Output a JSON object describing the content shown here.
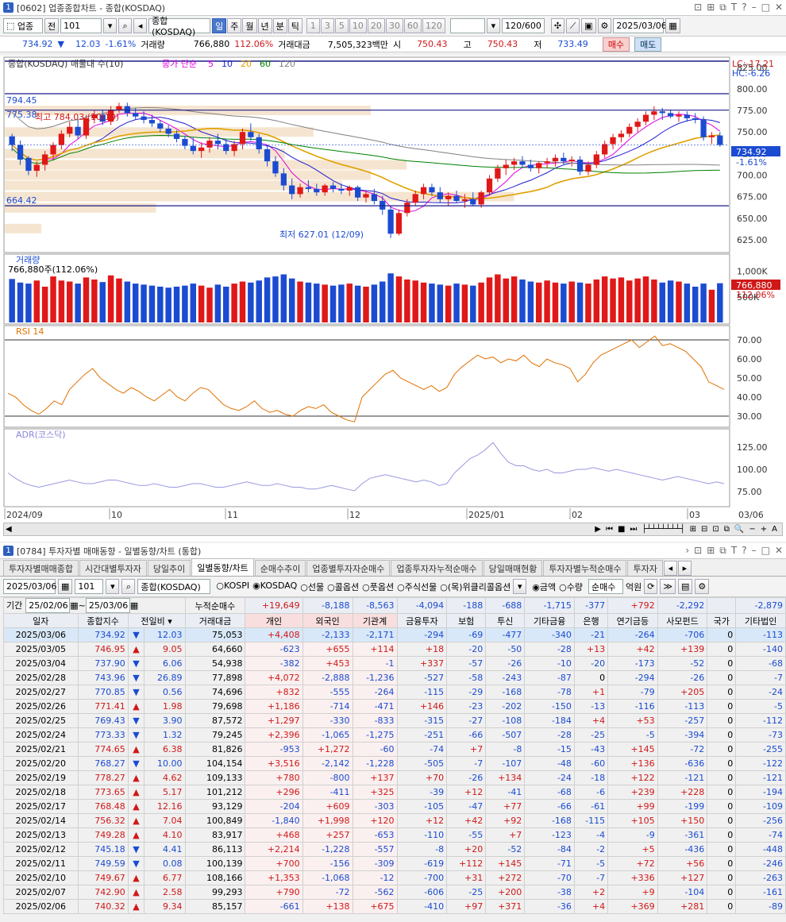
{
  "chart_win": {
    "badge": "1",
    "title": "[0602] 업종종합차트 - 종합(KOSDAQ)"
  },
  "toolbar": {
    "sector": "업종",
    "prev": "전",
    "code": "101",
    "name": "종합(KOSDAQ)",
    "periods": [
      "일",
      "주",
      "월",
      "년",
      "분",
      "틱"
    ],
    "nums": [
      "1",
      "3",
      "5",
      "10",
      "20",
      "30",
      "60",
      "120"
    ],
    "count": "120/600",
    "date": "2025/03/06"
  },
  "quote": {
    "price": "734.92",
    "arrow": "▼",
    "change": "12.03",
    "pct": "-1.61%",
    "vol_label": "거래량",
    "vol": "766,880",
    "vol_pct": "112.06%",
    "amt_label": "거래대금",
    "amt": "7,505,323백만",
    "open_l": "시",
    "open": "750.43",
    "high_l": "고",
    "high": "750.43",
    "low_l": "저",
    "low": "733.49",
    "buy": "매수",
    "sell": "매도"
  },
  "price_chart": {
    "legend": "종합(KOSDAQ) 매물대 수(10)",
    "ma_title": "종가 단순",
    "mas": [
      "5",
      "10",
      "20",
      "60",
      "120"
    ],
    "ma_colors": [
      "#e000e0",
      "#1e1ed0",
      "#e0a000",
      "#008000",
      "#808080"
    ],
    "lc": "LC:-17.21",
    "hc": "HC:-6.26",
    "hi_label": "최고 784.03 (10/10)",
    "lo_label": "최저 627.01 (12/09)",
    "lvl1": "794.45",
    "lvl2": "775.38",
    "lvl3": "664.42",
    "cur": "734.92",
    "cur_pct": "-1.61%",
    "yticks": [
      "825.00",
      "800.00",
      "775.00",
      "750.00",
      "725.00",
      "700.00",
      "675.00",
      "650.00",
      "625.00"
    ]
  },
  "vol_chart": {
    "label": "거래량",
    "info": "766,880주(112.06%)",
    "yticks": [
      "1,000K",
      "500K"
    ],
    "cur": "766,880",
    "pct": "112.06%"
  },
  "rsi": {
    "label": "RSI 14",
    "yticks": [
      "70.00",
      "60.00",
      "50.00",
      "40.00",
      "30.00"
    ]
  },
  "adr": {
    "label": "ADR(코스닥)",
    "yticks": [
      "125.00",
      "100.00",
      "75.00"
    ]
  },
  "xaxis": [
    "2024/09",
    "10",
    "11",
    "12",
    "2025/01",
    "02",
    "03",
    "03/06"
  ],
  "inv_win": {
    "badge": "1",
    "title": "[0784] 투자자별 매매동향 - 일별동향/차트 (통합)"
  },
  "inv_tabs": [
    "투자자별매매종합",
    "시간대별투자자",
    "당일추이",
    "일별동향/차트",
    "순매수추이",
    "업종별투자자순매수",
    "업종투자자누적순매수",
    "당일매매현황",
    "투자자별누적순매수",
    "투자자"
  ],
  "inv_ctrl": {
    "date": "2025/03/06",
    "code": "101",
    "name": "종합(KOSDAQ)",
    "markets": [
      "KOSPI",
      "KOSDAQ",
      "선물",
      "콜옵션",
      "풋옵션",
      "주식선물",
      "(목)위클리콜옵션"
    ],
    "units": [
      "금액",
      "수량"
    ],
    "mode": "순매수",
    "unit": "억원"
  },
  "period": {
    "label": "기간",
    "from": "25/02/06",
    "to": "25/03/06",
    "sum_label": "누적순매수",
    "sums": [
      "+19,649",
      "-8,188",
      "-8,563",
      "-4,094",
      "-188",
      "-688",
      "-1,715",
      "-377",
      "+792",
      "-2,292",
      "",
      "-2,879"
    ]
  },
  "headers": [
    "일자",
    "종합지수",
    "전일비",
    "거래대금",
    "개인",
    "외국인",
    "기관계",
    "금융투자",
    "보험",
    "투신",
    "기타금융",
    "은행",
    "연기금등",
    "사모펀드",
    "국가",
    "기타법인"
  ],
  "rows": [
    [
      "2025/03/06",
      "734.92",
      "▼",
      "12.03",
      "75,053",
      "+4,408",
      "-2,133",
      "-2,171",
      "-294",
      "-69",
      "-477",
      "-340",
      "-21",
      "-264",
      "-706",
      "0",
      "-113"
    ],
    [
      "2025/03/05",
      "746.95",
      "▲",
      "9.05",
      "64,660",
      "-623",
      "+655",
      "+114",
      "+18",
      "-20",
      "-50",
      "-28",
      "+13",
      "+42",
      "+139",
      "0",
      "-140"
    ],
    [
      "2025/03/04",
      "737.90",
      "▼",
      "6.06",
      "54,938",
      "-382",
      "+453",
      "-1",
      "+337",
      "-57",
      "-26",
      "-10",
      "-20",
      "-173",
      "-52",
      "0",
      "-68"
    ],
    [
      "2025/02/28",
      "743.96",
      "▼",
      "26.89",
      "77,898",
      "+4,072",
      "-2,888",
      "-1,236",
      "-527",
      "-58",
      "-243",
      "-87",
      "0",
      "-294",
      "-26",
      "0",
      "-7"
    ],
    [
      "2025/02/27",
      "770.85",
      "▼",
      "0.56",
      "74,696",
      "+832",
      "-555",
      "-264",
      "-115",
      "-29",
      "-168",
      "-78",
      "+1",
      "-79",
      "+205",
      "0",
      "-24"
    ],
    [
      "2025/02/26",
      "771.41",
      "▲",
      "1.98",
      "79,698",
      "+1,186",
      "-714",
      "-471",
      "+146",
      "-23",
      "-202",
      "-150",
      "-13",
      "-116",
      "-113",
      "0",
      "-5"
    ],
    [
      "2025/02/25",
      "769.43",
      "▼",
      "3.90",
      "87,572",
      "+1,297",
      "-330",
      "-833",
      "-315",
      "-27",
      "-108",
      "-184",
      "+4",
      "+53",
      "-257",
      "0",
      "-112"
    ],
    [
      "2025/02/24",
      "773.33",
      "▼",
      "1.32",
      "79,245",
      "+2,396",
      "-1,065",
      "-1,275",
      "-251",
      "-66",
      "-507",
      "-28",
      "-25",
      "-5",
      "-394",
      "0",
      "-73"
    ],
    [
      "2025/02/21",
      "774.65",
      "▲",
      "6.38",
      "81,826",
      "-953",
      "+1,272",
      "-60",
      "-74",
      "+7",
      "-8",
      "-15",
      "-43",
      "+145",
      "-72",
      "0",
      "-255"
    ],
    [
      "2025/02/20",
      "768.27",
      "▼",
      "10.00",
      "104,154",
      "+3,516",
      "-2,142",
      "-1,228",
      "-505",
      "-7",
      "-107",
      "-48",
      "-60",
      "+136",
      "-636",
      "0",
      "-122"
    ],
    [
      "2025/02/19",
      "778.27",
      "▲",
      "4.62",
      "109,133",
      "+780",
      "-800",
      "+137",
      "+70",
      "-26",
      "+134",
      "-24",
      "-18",
      "+122",
      "-121",
      "0",
      "-121"
    ],
    [
      "2025/02/18",
      "773.65",
      "▲",
      "5.17",
      "101,212",
      "+296",
      "-411",
      "+325",
      "-39",
      "+12",
      "-41",
      "-68",
      "-6",
      "+239",
      "+228",
      "0",
      "-194"
    ],
    [
      "2025/02/17",
      "768.48",
      "▲",
      "12.16",
      "93,129",
      "-204",
      "+609",
      "-303",
      "-105",
      "-47",
      "+77",
      "-66",
      "-61",
      "+99",
      "-199",
      "0",
      "-109"
    ],
    [
      "2025/02/14",
      "756.32",
      "▲",
      "7.04",
      "100,849",
      "-1,840",
      "+1,998",
      "+120",
      "+12",
      "+42",
      "+92",
      "-168",
      "-115",
      "+105",
      "+150",
      "0",
      "-256"
    ],
    [
      "2025/02/13",
      "749.28",
      "▲",
      "4.10",
      "83,917",
      "+468",
      "+257",
      "-653",
      "-110",
      "-55",
      "+7",
      "-123",
      "-4",
      "-9",
      "-361",
      "0",
      "-74"
    ],
    [
      "2025/02/12",
      "745.18",
      "▼",
      "4.41",
      "86,113",
      "+2,214",
      "-1,228",
      "-557",
      "-8",
      "+20",
      "-52",
      "-84",
      "-2",
      "+5",
      "-436",
      "0",
      "-448"
    ],
    [
      "2025/02/11",
      "749.59",
      "▼",
      "0.08",
      "100,139",
      "+700",
      "-156",
      "-309",
      "-619",
      "+112",
      "+145",
      "-71",
      "-5",
      "+72",
      "+56",
      "0",
      "-246"
    ],
    [
      "2025/02/10",
      "749.67",
      "▲",
      "6.77",
      "108,166",
      "+1,353",
      "-1,068",
      "-12",
      "-700",
      "+31",
      "+272",
      "-70",
      "-7",
      "+336",
      "+127",
      "0",
      "-263"
    ],
    [
      "2025/02/07",
      "742.90",
      "▲",
      "2.58",
      "99,293",
      "+790",
      "-72",
      "-562",
      "-606",
      "-25",
      "+200",
      "-38",
      "+2",
      "+9",
      "-104",
      "0",
      "-161"
    ],
    [
      "2025/02/06",
      "740.32",
      "▲",
      "9.34",
      "85,157",
      "-661",
      "+138",
      "+675",
      "-410",
      "+97",
      "+371",
      "-36",
      "+4",
      "+369",
      "+281",
      "0",
      "-89"
    ]
  ],
  "chart_data": [
    {
      "type": "candlestick",
      "title": "종합(KOSDAQ)",
      "ylim": [
        612,
        835
      ],
      "candles": [
        [
          745,
          748,
          728,
          735
        ],
        [
          735,
          740,
          712,
          718
        ],
        [
          720,
          722,
          700,
          705
        ],
        [
          705,
          716,
          698,
          712
        ],
        [
          712,
          728,
          705,
          724
        ],
        [
          724,
          738,
          718,
          735
        ],
        [
          735,
          752,
          730,
          748
        ],
        [
          748,
          762,
          744,
          756
        ],
        [
          756,
          764,
          742,
          746
        ],
        [
          746,
          770,
          742,
          766
        ],
        [
          766,
          775,
          760,
          770
        ],
        [
          770,
          776,
          758,
          762
        ],
        [
          762,
          780,
          758,
          776
        ],
        [
          776,
          784,
          772,
          780
        ],
        [
          780,
          784,
          768,
          772
        ],
        [
          772,
          778,
          764,
          768
        ],
        [
          768,
          774,
          760,
          764
        ],
        [
          764,
          770,
          756,
          760
        ],
        [
          760,
          764,
          750,
          754
        ],
        [
          754,
          758,
          744,
          748
        ],
        [
          748,
          752,
          738,
          742
        ],
        [
          742,
          746,
          730,
          734
        ],
        [
          734,
          744,
          724,
          728
        ],
        [
          728,
          738,
          720,
          732
        ],
        [
          732,
          744,
          726,
          740
        ],
        [
          740,
          748,
          730,
          736
        ],
        [
          736,
          742,
          724,
          728
        ],
        [
          728,
          740,
          722,
          736
        ],
        [
          736,
          754,
          730,
          750
        ],
        [
          750,
          760,
          740,
          744
        ],
        [
          744,
          748,
          725,
          730
        ],
        [
          730,
          734,
          710,
          716
        ],
        [
          716,
          722,
          698,
          702
        ],
        [
          702,
          708,
          682,
          688
        ],
        [
          688,
          696,
          672,
          678
        ],
        [
          678,
          690,
          674,
          686
        ],
        [
          686,
          694,
          680,
          684
        ],
        [
          684,
          690,
          676,
          680
        ],
        [
          680,
          690,
          676,
          688
        ],
        [
          688,
          692,
          680,
          684
        ],
        [
          684,
          690,
          678,
          682
        ],
        [
          682,
          688,
          676,
          686
        ],
        [
          686,
          688,
          670,
          674
        ],
        [
          674,
          682,
          668,
          678
        ],
        [
          678,
          684,
          666,
          670
        ],
        [
          670,
          676,
          654,
          660
        ],
        [
          660,
          664,
          627,
          632
        ],
        [
          632,
          660,
          630,
          656
        ],
        [
          656,
          672,
          652,
          668
        ],
        [
          668,
          682,
          664,
          678
        ],
        [
          678,
          690,
          672,
          686
        ],
        [
          686,
          690,
          676,
          680
        ],
        [
          680,
          686,
          668,
          672
        ],
        [
          672,
          680,
          664,
          676
        ],
        [
          676,
          682,
          668,
          670
        ],
        [
          670,
          678,
          662,
          672
        ],
        [
          672,
          680,
          664,
          666
        ],
        [
          666,
          682,
          662,
          680
        ],
        [
          680,
          700,
          676,
          696
        ],
        [
          696,
          712,
          692,
          708
        ],
        [
          708,
          718,
          700,
          712
        ],
        [
          712,
          720,
          706,
          716
        ],
        [
          716,
          722,
          708,
          712
        ],
        [
          712,
          718,
          704,
          708
        ],
        [
          708,
          716,
          702,
          714
        ],
        [
          714,
          720,
          708,
          716
        ],
        [
          716,
          724,
          710,
          720
        ],
        [
          720,
          726,
          712,
          716
        ],
        [
          716,
          722,
          710,
          718
        ],
        [
          718,
          722,
          700,
          704
        ],
        [
          704,
          716,
          700,
          712
        ],
        [
          712,
          728,
          708,
          724
        ],
        [
          724,
          740,
          720,
          736
        ],
        [
          736,
          748,
          730,
          744
        ],
        [
          744,
          752,
          738,
          748
        ],
        [
          748,
          760,
          744,
          756
        ],
        [
          756,
          766,
          750,
          762
        ],
        [
          762,
          774,
          758,
          770
        ],
        [
          770,
          780,
          764,
          774
        ],
        [
          774,
          778,
          764,
          772
        ],
        [
          772,
          776,
          766,
          768
        ],
        [
          768,
          774,
          762,
          770
        ],
        [
          770,
          774,
          762,
          766
        ],
        [
          766,
          772,
          760,
          764
        ],
        [
          764,
          768,
          740,
          744
        ],
        [
          744,
          750,
          736,
          746
        ],
        [
          746,
          750,
          733,
          735
        ]
      ]
    },
    {
      "type": "bar",
      "title": "거래량",
      "values": [
        850,
        780,
        760,
        820,
        700,
        900,
        820,
        800,
        760,
        880,
        840,
        790,
        920,
        860,
        800,
        760,
        740,
        720,
        700,
        680,
        700,
        720,
        760,
        720,
        680,
        740,
        700,
        760,
        800,
        780,
        820,
        880,
        900,
        940,
        860,
        800,
        780,
        760,
        740,
        720,
        740,
        760,
        720,
        700,
        740,
        800,
        960,
        900,
        840,
        820,
        780,
        760,
        740,
        720,
        760,
        740,
        720,
        780,
        880,
        940,
        860,
        900,
        840,
        800,
        780,
        820,
        780,
        760,
        800,
        780,
        760,
        840,
        900,
        860,
        880,
        820,
        860,
        900,
        840,
        780,
        820,
        800,
        760,
        700,
        760,
        640,
        767
      ]
    },
    {
      "type": "line",
      "title": "RSI 14",
      "ylim": [
        25,
        75
      ],
      "values": [
        42,
        40,
        36,
        33,
        31,
        34,
        38,
        36,
        44,
        48,
        52,
        55,
        50,
        47,
        44,
        42,
        45,
        43,
        40,
        38,
        41,
        44,
        40,
        38,
        42,
        45,
        44,
        40,
        36,
        34,
        33,
        35,
        38,
        34,
        32,
        33,
        31,
        30,
        33,
        35,
        34,
        36,
        32,
        30,
        28,
        27,
        40,
        44,
        48,
        52,
        54,
        50,
        48,
        46,
        44,
        46,
        43,
        45,
        52,
        56,
        59,
        62,
        60,
        61,
        58,
        60,
        59,
        62,
        58,
        56,
        60,
        58,
        57,
        55,
        48,
        52,
        58,
        62,
        64,
        66,
        68,
        70,
        66,
        69,
        72,
        67,
        68,
        66,
        64,
        60,
        56,
        48,
        46,
        44
      ]
    },
    {
      "type": "line",
      "title": "ADR(코스닥)",
      "ylim": [
        60,
        140
      ],
      "values": [
        96,
        90,
        85,
        82,
        80,
        82,
        84,
        86,
        88,
        86,
        84,
        84,
        86,
        88,
        88,
        86,
        84,
        82,
        82,
        84,
        82,
        80,
        80,
        82,
        84,
        84,
        82,
        80,
        80,
        82,
        84,
        86,
        84,
        82,
        82,
        84,
        82,
        80,
        80,
        78,
        78,
        80,
        82,
        80,
        78,
        76,
        84,
        90,
        92,
        94,
        92,
        90,
        88,
        86,
        88,
        86,
        82,
        84,
        96,
        104,
        112,
        116,
        122,
        130,
        118,
        108,
        104,
        104,
        100,
        98,
        100,
        96,
        96,
        98,
        100,
        100,
        102,
        100,
        98,
        100,
        98,
        96,
        94,
        92,
        90,
        88,
        90,
        92,
        90,
        88,
        86,
        84,
        86,
        84
      ]
    }
  ]
}
